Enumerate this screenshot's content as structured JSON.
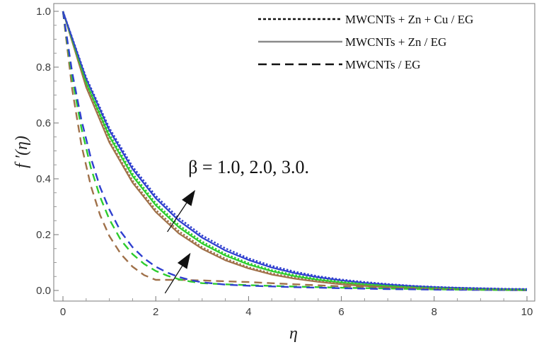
{
  "chart_data": {
    "type": "line",
    "xlabel": "η",
    "ylabel": "f ′(η)",
    "xlim": [
      0,
      10
    ],
    "ylim": [
      -0.04,
      1.04
    ],
    "xticks": [
      0,
      2,
      4,
      6,
      8,
      10
    ],
    "yticks": [
      0.0,
      0.2,
      0.4,
      0.6,
      0.8,
      1.0
    ],
    "xtick_labels": [
      "0",
      "2",
      "4",
      "6",
      "8",
      "10"
    ],
    "ytick_labels": [
      "0.0",
      "0.2",
      "0.4",
      "0.6",
      "0.8",
      "1.0"
    ],
    "grid": false,
    "legend_position": "top-right",
    "legend": [
      {
        "label": "MWCNTs + Zn + Cu / EG",
        "style": "dotted"
      },
      {
        "label": "MWCNTs + Zn / EG",
        "style": "solid"
      },
      {
        "label": "MWCNTs / EG",
        "style": "dashed"
      }
    ],
    "annotation": {
      "text": "β = 1.0, 2.0, 3.0.",
      "arrows": [
        {
          "from": [
            2.25,
            0.21
          ],
          "to": [
            2.85,
            0.36
          ]
        },
        {
          "from": [
            2.2,
            -0.01
          ],
          "to": [
            2.75,
            0.135
          ]
        }
      ],
      "text_anchor": [
        2.7,
        0.42
      ]
    },
    "series": [
      {
        "group": "solid",
        "beta": 1.0,
        "color": "#a0714a",
        "style": "solid",
        "x": [
          0,
          0.5,
          1,
          1.5,
          2,
          2.5,
          3,
          3.5,
          4,
          4.5,
          5,
          5.5,
          6,
          6.5,
          7,
          7.5,
          8,
          8.5,
          9,
          9.5,
          10
        ],
        "y": [
          1.0,
          0.728,
          0.53,
          0.386,
          0.281,
          0.204,
          0.149,
          0.108,
          0.079,
          0.057,
          0.042,
          0.031,
          0.022,
          0.016,
          0.012,
          0.009,
          0.006,
          0.005,
          0.003,
          0.002,
          0.002
        ]
      },
      {
        "group": "solid",
        "beta": 2.0,
        "color": "#2ecc2e",
        "style": "solid",
        "x": [
          0,
          0.5,
          1,
          1.5,
          2,
          2.5,
          3,
          3.5,
          4,
          4.5,
          5,
          5.5,
          6,
          6.5,
          7,
          7.5,
          8,
          8.5,
          9,
          9.5,
          10
        ],
        "y": [
          1.0,
          0.743,
          0.552,
          0.41,
          0.305,
          0.226,
          0.168,
          0.125,
          0.093,
          0.069,
          0.051,
          0.038,
          0.028,
          0.021,
          0.016,
          0.012,
          0.009,
          0.006,
          0.005,
          0.003,
          0.003
        ]
      },
      {
        "group": "solid",
        "beta": 3.0,
        "color": "#2f3fcf",
        "style": "solid",
        "x": [
          0,
          0.5,
          1,
          1.5,
          2,
          2.5,
          3,
          3.5,
          4,
          4.5,
          5,
          5.5,
          6,
          6.5,
          7,
          7.5,
          8,
          8.5,
          9,
          9.5,
          10
        ],
        "y": [
          1.0,
          0.758,
          0.574,
          0.435,
          0.33,
          0.25,
          0.189,
          0.143,
          0.109,
          0.082,
          0.062,
          0.047,
          0.036,
          0.027,
          0.021,
          0.016,
          0.012,
          0.009,
          0.007,
          0.005,
          0.004
        ]
      },
      {
        "group": "dotted",
        "beta": 1.0,
        "color": "#a0714a",
        "style": "dotted",
        "x": [
          0,
          0.5,
          1,
          1.5,
          2,
          2.5,
          3,
          3.5,
          4,
          4.5,
          5,
          5.5,
          6,
          6.5,
          7,
          7.5,
          8,
          8.5,
          9,
          9.5,
          10
        ],
        "y": [
          1.0,
          0.733,
          0.537,
          0.394,
          0.289,
          0.212,
          0.155,
          0.114,
          0.083,
          0.061,
          0.045,
          0.033,
          0.024,
          0.018,
          0.013,
          0.01,
          0.007,
          0.005,
          0.004,
          0.003,
          0.002
        ]
      },
      {
        "group": "dotted",
        "beta": 2.0,
        "color": "#2ecc2e",
        "style": "dotted",
        "x": [
          0,
          0.5,
          1,
          1.5,
          2,
          2.5,
          3,
          3.5,
          4,
          4.5,
          5,
          5.5,
          6,
          6.5,
          7,
          7.5,
          8,
          8.5,
          9,
          9.5,
          10
        ],
        "y": [
          1.0,
          0.748,
          0.56,
          0.419,
          0.313,
          0.234,
          0.175,
          0.131,
          0.098,
          0.073,
          0.055,
          0.041,
          0.031,
          0.023,
          0.017,
          0.013,
          0.01,
          0.007,
          0.005,
          0.004,
          0.003
        ]
      },
      {
        "group": "dotted",
        "beta": 3.0,
        "color": "#2f3fcf",
        "style": "dotted",
        "x": [
          0,
          0.5,
          1,
          1.5,
          2,
          2.5,
          3,
          3.5,
          4,
          4.5,
          5,
          5.5,
          6,
          6.5,
          7,
          7.5,
          8,
          8.5,
          9,
          9.5,
          10
        ],
        "y": [
          1.0,
          0.763,
          0.582,
          0.444,
          0.339,
          0.259,
          0.197,
          0.151,
          0.115,
          0.088,
          0.067,
          0.051,
          0.039,
          0.03,
          0.023,
          0.017,
          0.013,
          0.01,
          0.008,
          0.006,
          0.005
        ]
      },
      {
        "group": "dashed",
        "beta": 1.0,
        "color": "#a0714a",
        "style": "dashed",
        "x": [
          0,
          0.2,
          0.4,
          0.6,
          0.8,
          1.0,
          1.25,
          1.5,
          1.75,
          2.0,
          2.5,
          3.0,
          3.5,
          4,
          5,
          6,
          7,
          8,
          9,
          10
        ],
        "y": [
          1.0,
          0.72,
          0.52,
          0.375,
          0.27,
          0.195,
          0.13,
          0.085,
          0.055,
          0.038,
          0.038,
          0.036,
          0.033,
          0.03,
          0.022,
          0.015,
          0.01,
          0.006,
          0.003,
          0.001
        ]
      },
      {
        "group": "dashed",
        "beta": 2.0,
        "color": "#2ecc2e",
        "style": "dashed",
        "x": [
          0,
          0.2,
          0.4,
          0.6,
          0.8,
          1.0,
          1.25,
          1.5,
          1.75,
          2.0,
          2.25,
          2.5,
          2.75,
          3.0,
          3.5,
          4,
          5,
          6,
          7,
          8,
          9,
          10
        ],
        "y": [
          1.0,
          0.76,
          0.58,
          0.44,
          0.335,
          0.255,
          0.18,
          0.13,
          0.095,
          0.07,
          0.053,
          0.04,
          0.032,
          0.026,
          0.022,
          0.019,
          0.014,
          0.01,
          0.007,
          0.004,
          0.002,
          0.001
        ]
      },
      {
        "group": "dashed",
        "beta": 3.0,
        "color": "#2f3fcf",
        "style": "dashed",
        "x": [
          0,
          0.2,
          0.4,
          0.6,
          0.8,
          1.0,
          1.25,
          1.5,
          1.75,
          2.0,
          2.25,
          2.5,
          2.75,
          3.0,
          3.5,
          4,
          5,
          6,
          7,
          8,
          9,
          10
        ],
        "y": [
          1.0,
          0.78,
          0.61,
          0.475,
          0.37,
          0.29,
          0.21,
          0.155,
          0.115,
          0.085,
          0.064,
          0.048,
          0.037,
          0.029,
          0.021,
          0.017,
          0.012,
          0.008,
          0.005,
          0.003,
          0.002,
          0.001
        ]
      }
    ]
  }
}
